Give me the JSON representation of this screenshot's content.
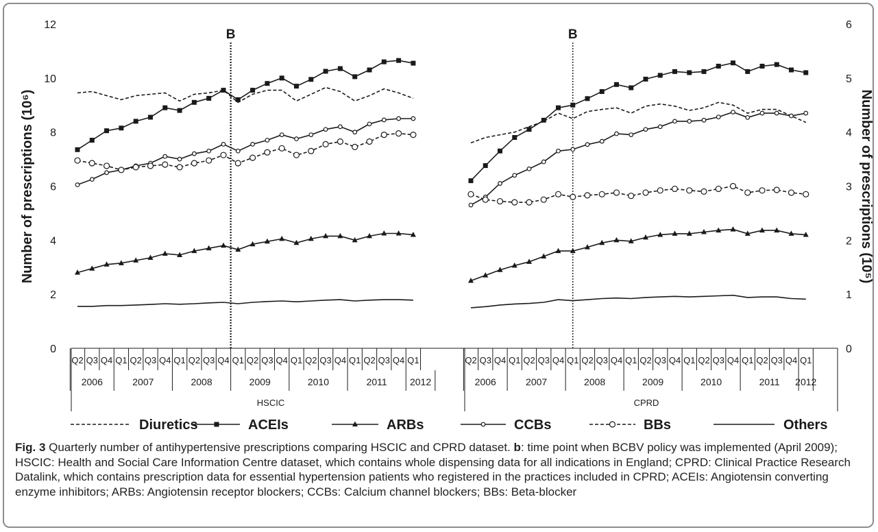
{
  "colors": {
    "line": "#1a1a1a",
    "frame": "#8c8c8c",
    "background": "#ffffff"
  },
  "chart_data": {
    "type": "line",
    "ylabel_left": "Number of prescriptions (10⁶)",
    "ylabel_right": "Number of prescriptions (10⁵)",
    "ylim_left": [
      0,
      12
    ],
    "ylim_right": [
      0,
      6
    ],
    "yticks_left": [
      "0",
      "2",
      "4",
      "6",
      "8",
      "10",
      "12"
    ],
    "yticks_right": [
      "0",
      "1",
      "2",
      "3",
      "4",
      "5",
      "6"
    ],
    "grid": false,
    "legend_position": "bottom",
    "policy_marker_label": "B",
    "panels": [
      {
        "dataset": "HSCIC",
        "axis": "left",
        "quarters": [
          "Q2",
          "Q3",
          "Q4",
          "Q1",
          "Q2",
          "Q3",
          "Q4",
          "Q1",
          "Q2",
          "Q3",
          "Q4",
          "Q1",
          "Q2",
          "Q3",
          "Q4",
          "Q1",
          "Q2",
          "Q3",
          "Q4",
          "Q1",
          "Q2",
          "Q3",
          "Q4",
          "Q1"
        ],
        "years": [
          {
            "label": "2006",
            "span": [
              0,
              3
            ]
          },
          {
            "label": "2007",
            "span": [
              3,
              7
            ]
          },
          {
            "label": "2008",
            "span": [
              7,
              11
            ]
          },
          {
            "label": "2009",
            "span": [
              11,
              15
            ]
          },
          {
            "label": "2010",
            "span": [
              15,
              19
            ]
          },
          {
            "label": "2011",
            "span": [
              19,
              23
            ]
          },
          {
            "label": "2012",
            "span": [
              23,
              25
            ]
          }
        ],
        "policy_marker_index": 11,
        "series": [
          {
            "name": "Diuretics",
            "values": [
              9.45,
              9.5,
              9.35,
              9.2,
              9.35,
              9.4,
              9.45,
              9.15,
              9.4,
              9.45,
              9.55,
              9.1,
              9.4,
              9.55,
              9.55,
              9.15,
              9.4,
              9.65,
              9.5,
              9.15,
              9.35,
              9.6,
              9.45,
              9.25
            ]
          },
          {
            "name": "ACEIs",
            "values": [
              7.35,
              7.7,
              8.05,
              8.15,
              8.4,
              8.55,
              8.9,
              8.8,
              9.1,
              9.25,
              9.55,
              9.2,
              9.55,
              9.8,
              10.0,
              9.7,
              9.95,
              10.25,
              10.35,
              10.05,
              10.3,
              10.6,
              10.65,
              10.55
            ]
          },
          {
            "name": "ARBs",
            "values": [
              2.8,
              2.95,
              3.1,
              3.15,
              3.25,
              3.35,
              3.5,
              3.45,
              3.6,
              3.7,
              3.8,
              3.65,
              3.85,
              3.95,
              4.05,
              3.9,
              4.05,
              4.15,
              4.15,
              4.0,
              4.15,
              4.25,
              4.25,
              4.2
            ]
          },
          {
            "name": "CCBs",
            "values": [
              6.05,
              6.25,
              6.5,
              6.6,
              6.75,
              6.85,
              7.1,
              7.0,
              7.2,
              7.3,
              7.55,
              7.3,
              7.55,
              7.7,
              7.9,
              7.75,
              7.9,
              8.1,
              8.2,
              8.0,
              8.3,
              8.45,
              8.5,
              8.5
            ]
          },
          {
            "name": "BBs",
            "values": [
              6.95,
              6.85,
              6.75,
              6.6,
              6.7,
              6.75,
              6.8,
              6.7,
              6.85,
              6.95,
              7.15,
              6.85,
              7.05,
              7.25,
              7.4,
              7.15,
              7.3,
              7.55,
              7.65,
              7.45,
              7.65,
              7.9,
              7.95,
              7.9
            ]
          },
          {
            "name": "Others",
            "values": [
              1.55,
              1.55,
              1.58,
              1.58,
              1.6,
              1.62,
              1.65,
              1.63,
              1.65,
              1.68,
              1.7,
              1.65,
              1.7,
              1.73,
              1.75,
              1.72,
              1.75,
              1.78,
              1.8,
              1.75,
              1.78,
              1.8,
              1.8,
              1.78
            ]
          }
        ]
      },
      {
        "dataset": "CPRD",
        "axis": "right",
        "quarters": [
          "Q2",
          "Q3",
          "Q4",
          "Q1",
          "Q2",
          "Q3",
          "Q4",
          "Q1",
          "Q2",
          "Q3",
          "Q4",
          "Q1",
          "Q2",
          "Q3",
          "Q4",
          "Q1",
          "Q2",
          "Q3",
          "Q4",
          "Q1",
          "Q2",
          "Q3",
          "Q4",
          "Q1"
        ],
        "years": [
          {
            "label": "2006",
            "span": [
              0,
              3
            ]
          },
          {
            "label": "2007",
            "span": [
              3,
              7
            ]
          },
          {
            "label": "2008",
            "span": [
              7,
              11
            ]
          },
          {
            "label": "2009",
            "span": [
              11,
              15
            ]
          },
          {
            "label": "2010",
            "span": [
              15,
              19
            ]
          },
          {
            "label": "2011",
            "span": [
              19,
              23
            ]
          },
          {
            "label": "2012",
            "span": [
              23,
              24
            ]
          }
        ],
        "policy_marker_index": 7.5,
        "series": [
          {
            "name": "Diuretics",
            "values": [
              3.8,
              3.9,
              3.95,
              4.0,
              4.1,
              4.2,
              4.35,
              4.25,
              4.38,
              4.42,
              4.45,
              4.35,
              4.48,
              4.52,
              4.48,
              4.4,
              4.45,
              4.55,
              4.5,
              4.35,
              4.42,
              4.42,
              4.3,
              4.18
            ]
          },
          {
            "name": "ACEIs",
            "values": [
              3.1,
              3.38,
              3.65,
              3.9,
              4.05,
              4.22,
              4.45,
              4.5,
              4.62,
              4.75,
              4.88,
              4.82,
              4.98,
              5.05,
              5.12,
              5.1,
              5.12,
              5.22,
              5.28,
              5.12,
              5.22,
              5.25,
              5.15,
              5.1
            ]
          },
          {
            "name": "ARBs",
            "values": [
              1.25,
              1.35,
              1.45,
              1.53,
              1.6,
              1.7,
              1.8,
              1.8,
              1.87,
              1.95,
              2.0,
              1.98,
              2.05,
              2.1,
              2.12,
              2.12,
              2.15,
              2.18,
              2.2,
              2.12,
              2.18,
              2.18,
              2.12,
              2.1
            ]
          },
          {
            "name": "CCBs",
            "values": [
              2.65,
              2.8,
              3.05,
              3.2,
              3.32,
              3.45,
              3.65,
              3.68,
              3.77,
              3.83,
              3.97,
              3.95,
              4.05,
              4.1,
              4.2,
              4.2,
              4.22,
              4.28,
              4.37,
              4.27,
              4.35,
              4.35,
              4.3,
              4.35
            ]
          },
          {
            "name": "BBs",
            "values": [
              2.85,
              2.75,
              2.72,
              2.7,
              2.7,
              2.75,
              2.85,
              2.8,
              2.83,
              2.85,
              2.88,
              2.82,
              2.88,
              2.92,
              2.95,
              2.92,
              2.9,
              2.95,
              3.0,
              2.88,
              2.92,
              2.93,
              2.88,
              2.85
            ]
          },
          {
            "name": "Others",
            "values": [
              0.75,
              0.77,
              0.8,
              0.82,
              0.83,
              0.85,
              0.9,
              0.88,
              0.9,
              0.92,
              0.93,
              0.92,
              0.94,
              0.95,
              0.96,
              0.95,
              0.96,
              0.97,
              0.98,
              0.94,
              0.95,
              0.95,
              0.92,
              0.91
            ]
          }
        ]
      }
    ],
    "legend": [
      {
        "name": "Diuretics",
        "line": "dashed",
        "marker": "none"
      },
      {
        "name": "ACEIs",
        "line": "solid",
        "marker": "filled-square"
      },
      {
        "name": "ARBs",
        "line": "solid",
        "marker": "filled-triangle"
      },
      {
        "name": "CCBs",
        "line": "solid",
        "marker": "open-circle-small"
      },
      {
        "name": "BBs",
        "line": "dashed",
        "marker": "open-circle"
      },
      {
        "name": "Others",
        "line": "solid",
        "marker": "none"
      }
    ]
  },
  "caption": {
    "label": "Fig. 3",
    "text_1": " Quarterly number of antihypertensive prescriptions comparing HSCIC and CPRD dataset. ",
    "b_label": "b",
    "text_2": ": time point when BCBV policy was implemented (April 2009); HSCIC: Health and Social Care Information Centre dataset, which contains whole dispensing data for all indications in England; CPRD: Clinical Practice Research Datalink, which contains prescription data for essential hypertension patients who registered in the practices included in CPRD; ACEIs: Angiotensin converting enzyme inhibitors; ARBs: Angiotensin receptor blockers; CCBs: Calcium channel blockers; BBs: Beta-blocker"
  }
}
